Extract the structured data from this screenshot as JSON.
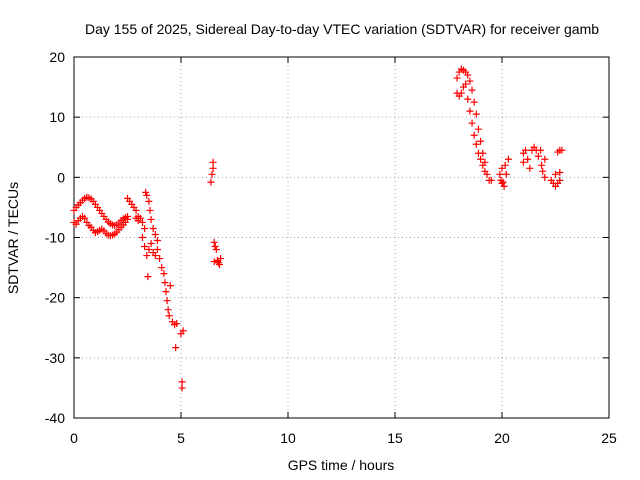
{
  "chart_data": {
    "type": "scatter",
    "title": "Day 155 of 2025, Sidereal Day-to-day VTEC variation (SDTVAR) for receiver gamb",
    "xlabel": "GPS time / hours",
    "ylabel": "SDTVAR / TECUs",
    "xlim": [
      0,
      25
    ],
    "ylim": [
      -40,
      20
    ],
    "xticks": [
      "0",
      "5",
      "10",
      "15",
      "20",
      "25"
    ],
    "yticks": [
      "-40",
      "-30",
      "-20",
      "-10",
      "0",
      "10",
      "20"
    ],
    "grid": true,
    "marker": "plus",
    "series": [
      {
        "name": "SDTVAR",
        "color": "#ff0000",
        "points": [
          [
            0.0,
            -5.5
          ],
          [
            0.0,
            -7.5
          ],
          [
            0.1,
            -5.0
          ],
          [
            0.1,
            -7.8
          ],
          [
            0.2,
            -4.6
          ],
          [
            0.2,
            -7.2
          ],
          [
            0.3,
            -4.2
          ],
          [
            0.3,
            -6.8
          ],
          [
            0.4,
            -3.8
          ],
          [
            0.4,
            -6.5
          ],
          [
            0.5,
            -3.5
          ],
          [
            0.5,
            -6.8
          ],
          [
            0.6,
            -3.3
          ],
          [
            0.6,
            -7.5
          ],
          [
            0.7,
            -3.4
          ],
          [
            0.7,
            -8.0
          ],
          [
            0.8,
            -3.6
          ],
          [
            0.8,
            -8.3
          ],
          [
            0.9,
            -4.0
          ],
          [
            0.9,
            -8.8
          ],
          [
            1.0,
            -4.5
          ],
          [
            1.0,
            -9.2
          ],
          [
            1.1,
            -5.0
          ],
          [
            1.1,
            -9.0
          ],
          [
            1.2,
            -5.5
          ],
          [
            1.2,
            -8.8
          ],
          [
            1.3,
            -6.0
          ],
          [
            1.3,
            -8.6
          ],
          [
            1.4,
            -6.5
          ],
          [
            1.4,
            -8.9
          ],
          [
            1.5,
            -7.0
          ],
          [
            1.5,
            -9.3
          ],
          [
            1.6,
            -7.4
          ],
          [
            1.6,
            -9.6
          ],
          [
            1.7,
            -7.7
          ],
          [
            1.7,
            -9.7
          ],
          [
            1.8,
            -7.9
          ],
          [
            1.8,
            -9.6
          ],
          [
            1.9,
            -8.0
          ],
          [
            1.9,
            -9.4
          ],
          [
            2.0,
            -7.9
          ],
          [
            2.0,
            -9.1
          ],
          [
            2.1,
            -7.6
          ],
          [
            2.1,
            -8.7
          ],
          [
            2.2,
            -7.2
          ],
          [
            2.2,
            -8.3
          ],
          [
            2.3,
            -6.9
          ],
          [
            2.3,
            -7.9
          ],
          [
            2.4,
            -6.7
          ],
          [
            2.4,
            -7.5
          ],
          [
            2.5,
            -6.5
          ],
          [
            2.5,
            -7.0
          ],
          [
            2.5,
            -3.5
          ],
          [
            2.6,
            -4.0
          ],
          [
            2.7,
            -4.5
          ],
          [
            2.8,
            -5.0
          ],
          [
            2.9,
            -5.5
          ],
          [
            2.9,
            -6.8
          ],
          [
            3.0,
            -6.5
          ],
          [
            3.0,
            -7.2
          ],
          [
            3.1,
            -6.8
          ],
          [
            3.2,
            -7.5
          ],
          [
            3.2,
            -10.0
          ],
          [
            3.3,
            -8.5
          ],
          [
            3.3,
            -11.5
          ],
          [
            3.35,
            -2.5
          ],
          [
            3.4,
            -3.0
          ],
          [
            3.4,
            -13.0
          ],
          [
            3.45,
            -16.5
          ],
          [
            3.5,
            -4.0
          ],
          [
            3.5,
            -12.0
          ],
          [
            3.55,
            -5.5
          ],
          [
            3.6,
            -7.0
          ],
          [
            3.6,
            -11.0
          ],
          [
            3.7,
            -8.5
          ],
          [
            3.7,
            -12.5
          ],
          [
            3.8,
            -9.5
          ],
          [
            3.8,
            -13.0
          ],
          [
            3.9,
            -10.5
          ],
          [
            3.9,
            -12.0
          ],
          [
            4.0,
            -13.5
          ],
          [
            4.1,
            -15.0
          ],
          [
            4.2,
            -16.0
          ],
          [
            4.25,
            -17.5
          ],
          [
            4.3,
            -19.0
          ],
          [
            4.35,
            -20.5
          ],
          [
            4.4,
            -22.0
          ],
          [
            4.45,
            -23.0
          ],
          [
            4.5,
            -18.0
          ],
          [
            4.6,
            -24.0
          ],
          [
            4.7,
            -24.5
          ],
          [
            4.75,
            -28.3
          ],
          [
            4.8,
            -24.3
          ],
          [
            5.0,
            -26.0
          ],
          [
            5.05,
            -34.0
          ],
          [
            5.05,
            -35.0
          ],
          [
            5.1,
            -25.5
          ],
          [
            6.4,
            -0.8
          ],
          [
            6.45,
            0.5
          ],
          [
            6.5,
            1.5
          ],
          [
            6.5,
            2.5
          ],
          [
            6.55,
            -10.8
          ],
          [
            6.55,
            -14.0
          ],
          [
            6.6,
            -11.5
          ],
          [
            6.65,
            -12.0
          ],
          [
            6.7,
            -13.8
          ],
          [
            6.75,
            -14.2
          ],
          [
            6.8,
            -14.5
          ],
          [
            6.85,
            -13.5
          ],
          [
            17.9,
            14.0
          ],
          [
            17.9,
            16.5
          ],
          [
            18.0,
            13.5
          ],
          [
            18.0,
            17.5
          ],
          [
            18.1,
            14.0
          ],
          [
            18.1,
            18.0
          ],
          [
            18.2,
            15.0
          ],
          [
            18.2,
            17.8
          ],
          [
            18.3,
            15.5
          ],
          [
            18.3,
            17.5
          ],
          [
            18.4,
            13.0
          ],
          [
            18.4,
            17.0
          ],
          [
            18.5,
            11.0
          ],
          [
            18.5,
            16.0
          ],
          [
            18.6,
            9.0
          ],
          [
            18.6,
            14.5
          ],
          [
            18.7,
            7.0
          ],
          [
            18.7,
            12.5
          ],
          [
            18.8,
            5.5
          ],
          [
            18.8,
            10.5
          ],
          [
            18.9,
            4.0
          ],
          [
            18.9,
            8.0
          ],
          [
            19.0,
            3.0
          ],
          [
            19.0,
            6.0
          ],
          [
            19.1,
            2.0
          ],
          [
            19.1,
            4.0
          ],
          [
            19.2,
            1.0
          ],
          [
            19.2,
            2.5
          ],
          [
            19.3,
            0.5
          ],
          [
            19.4,
            -0.5
          ],
          [
            19.5,
            -0.5
          ],
          [
            19.9,
            0.5
          ],
          [
            19.95,
            -0.5
          ],
          [
            20.0,
            -1.0
          ],
          [
            20.0,
            1.5
          ],
          [
            20.05,
            -0.8
          ],
          [
            20.1,
            -1.5
          ],
          [
            20.15,
            2.0
          ],
          [
            20.2,
            0.5
          ],
          [
            20.3,
            3.0
          ],
          [
            21.0,
            4.0
          ],
          [
            21.0,
            2.5
          ],
          [
            21.1,
            4.5
          ],
          [
            21.2,
            3.0
          ],
          [
            21.3,
            1.5
          ],
          [
            21.4,
            4.5
          ],
          [
            21.5,
            5.0
          ],
          [
            21.6,
            4.5
          ],
          [
            21.7,
            3.5
          ],
          [
            21.8,
            4.5
          ],
          [
            21.85,
            2.0
          ],
          [
            21.9,
            1.0
          ],
          [
            22.0,
            0.0
          ],
          [
            22.0,
            3.0
          ],
          [
            22.3,
            -0.5
          ],
          [
            22.4,
            -1.0
          ],
          [
            22.5,
            -1.5
          ],
          [
            22.5,
            0.5
          ],
          [
            22.6,
            -1.0
          ],
          [
            22.7,
            -0.5
          ],
          [
            22.7,
            0.8
          ],
          [
            22.6,
            4.2
          ],
          [
            22.7,
            4.5
          ],
          [
            22.8,
            4.5
          ]
        ]
      }
    ]
  }
}
